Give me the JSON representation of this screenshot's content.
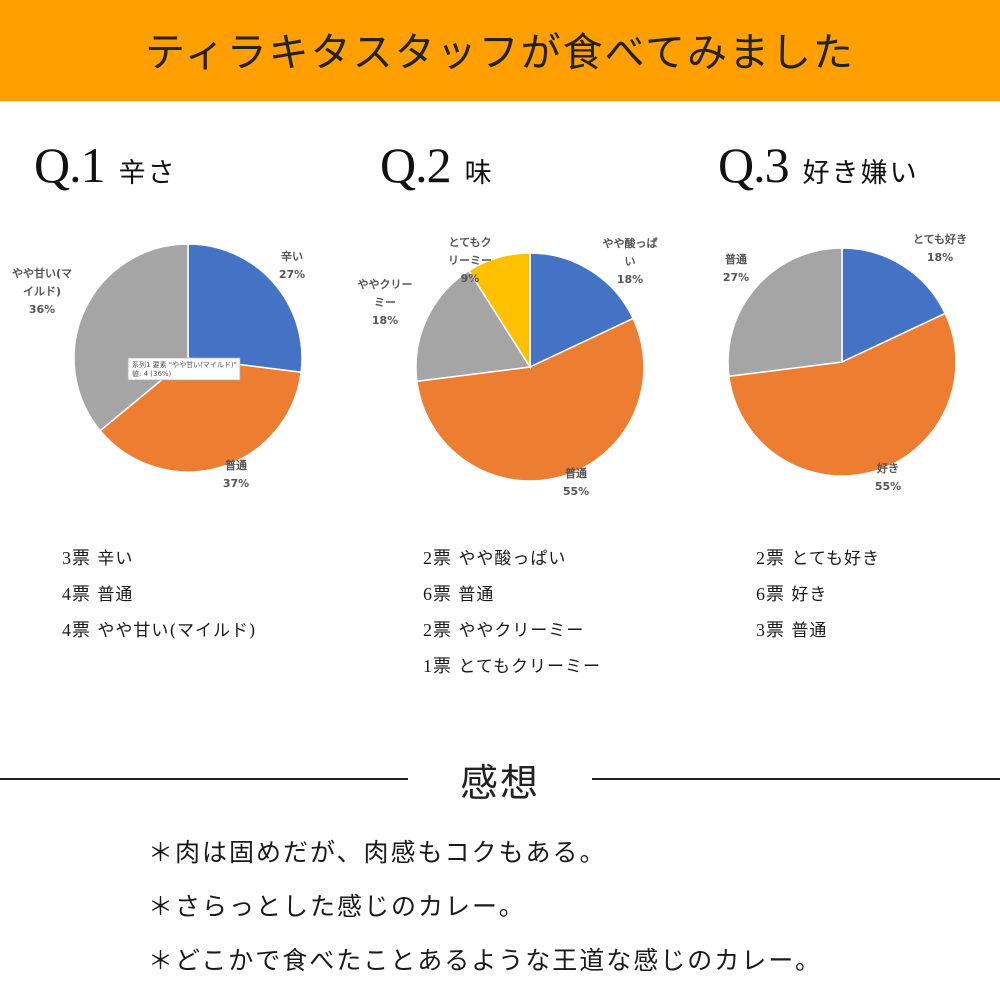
{
  "banner": {
    "title": "ティラキタスタッフが食べてみました",
    "color": "#ff9f00"
  },
  "colors": {
    "blue": "#4472c4",
    "orange": "#ed7d31",
    "gray": "#a5a5a5",
    "yellow": "#ffc000"
  },
  "questions": [
    {
      "number": "Q.1",
      "topic": "辛さ",
      "chart_data": {
        "type": "pie",
        "slices": [
          {
            "label": "辛い",
            "label_lines": [
              "辛い"
            ],
            "percent_label": "27%",
            "value": 27,
            "color": "#4472c4"
          },
          {
            "label": "普通",
            "label_lines": [
              "普通"
            ],
            "percent_label": "37%",
            "value": 37,
            "color": "#ed7d31"
          },
          {
            "label": "やや甘い(マイルド)",
            "label_lines": [
              "やや甘い(マ",
              "イルド)"
            ],
            "percent_label": "36%",
            "value": 36,
            "color": "#a5a5a5"
          }
        ],
        "tooltip": {
          "line1": "系列1 要素 \"やや甘い(マイルド)\"",
          "line2": "値: 4 (36%)"
        }
      },
      "votes": [
        {
          "count": "3票",
          "label": "辛い"
        },
        {
          "count": "4票",
          "label": "普通"
        },
        {
          "count": "4票",
          "label": "やや甘い(マイルド)"
        }
      ]
    },
    {
      "number": "Q.2",
      "topic": "味",
      "chart_data": {
        "type": "pie",
        "slices": [
          {
            "label": "やや酸っぱい",
            "label_lines": [
              "やや酸っぱ",
              "い"
            ],
            "percent_label": "18%",
            "value": 18,
            "color": "#4472c4"
          },
          {
            "label": "普通",
            "label_lines": [
              "普通"
            ],
            "percent_label": "55%",
            "value": 55,
            "color": "#ed7d31"
          },
          {
            "label": "ややクリーミー",
            "label_lines": [
              "ややクリー",
              "ミー"
            ],
            "percent_label": "18%",
            "value": 18,
            "color": "#a5a5a5"
          },
          {
            "label": "とてもクリーミー",
            "label_lines": [
              "とてもク",
              "リーミー"
            ],
            "percent_label": "9%",
            "value": 9,
            "color": "#ffc000"
          }
        ]
      },
      "votes": [
        {
          "count": "2票",
          "label": "やや酸っぱい"
        },
        {
          "count": "6票",
          "label": "普通"
        },
        {
          "count": "2票",
          "label": "ややクリーミー"
        },
        {
          "count": "1票",
          "label": "とてもクリーミー"
        }
      ]
    },
    {
      "number": "Q.3",
      "topic": "好き嫌い",
      "chart_data": {
        "type": "pie",
        "slices": [
          {
            "label": "とても好き",
            "label_lines": [
              "とても好き"
            ],
            "percent_label": "18%",
            "value": 18,
            "color": "#4472c4"
          },
          {
            "label": "好き",
            "label_lines": [
              "好き"
            ],
            "percent_label": "55%",
            "value": 55,
            "color": "#ed7d31"
          },
          {
            "label": "普通",
            "label_lines": [
              "普通"
            ],
            "percent_label": "27%",
            "value": 27,
            "color": "#a5a5a5"
          }
        ]
      },
      "votes": [
        {
          "count": "2票",
          "label": "とても好き"
        },
        {
          "count": "6票",
          "label": "好き"
        },
        {
          "count": "3票",
          "label": "普通"
        }
      ]
    }
  ],
  "impressions": {
    "title": "感想",
    "comments": [
      "＊肉は固めだが、肉感もコクもある。",
      "＊さらっとした感じのカレー。",
      "＊どこかで食べたことあるような王道な感じのカレー。"
    ]
  }
}
